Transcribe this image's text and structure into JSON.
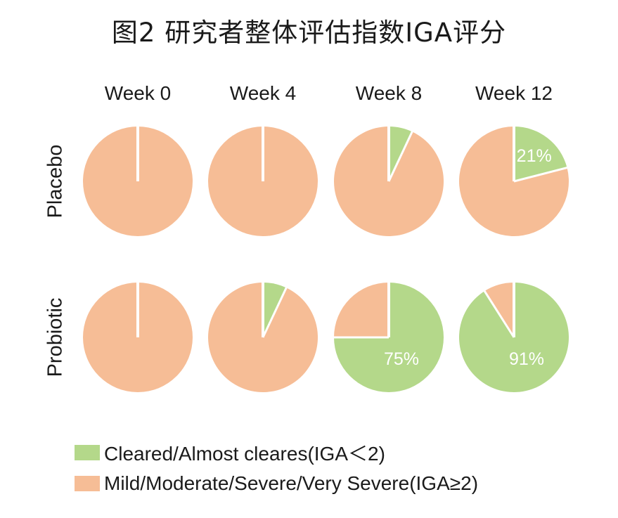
{
  "title": "图2 研究者整体评估指数IGA评分",
  "colors": {
    "cleared": "#b4d88a",
    "mild": "#f6bd96",
    "separator": "#ffffff"
  },
  "chart_data": {
    "type": "pie",
    "columns": [
      "Week 0",
      "Week 4",
      "Week 8",
      "Week 12"
    ],
    "rows": [
      "Placebo",
      "Probiotic"
    ],
    "series": [
      {
        "name": "Cleared/Almost cleares(IGA＜2)",
        "key": "cleared"
      },
      {
        "name": "Mild/Moderate/Severe/Very Severe(IGA≥2)",
        "key": "mild"
      }
    ],
    "cells": [
      {
        "row": "Placebo",
        "col": "Week 0",
        "cleared_pct": 0,
        "label": ""
      },
      {
        "row": "Placebo",
        "col": "Week 4",
        "cleared_pct": 0,
        "label": ""
      },
      {
        "row": "Placebo",
        "col": "Week 8",
        "cleared_pct": 7,
        "label": ""
      },
      {
        "row": "Placebo",
        "col": "Week 12",
        "cleared_pct": 21,
        "label": "21%"
      },
      {
        "row": "Probiotic",
        "col": "Week 0",
        "cleared_pct": 0,
        "label": ""
      },
      {
        "row": "Probiotic",
        "col": "Week 4",
        "cleared_pct": 7,
        "label": ""
      },
      {
        "row": "Probiotic",
        "col": "Week 8",
        "cleared_pct": 75,
        "label": "75%"
      },
      {
        "row": "Probiotic",
        "col": "Week 12",
        "cleared_pct": 91,
        "label": "91%"
      }
    ]
  },
  "legend": {
    "cleared_label": "Cleared/Almost cleares(IGA＜2)",
    "mild_label": "Mild/Moderate/Severe/Very Severe(IGA≥2)"
  }
}
